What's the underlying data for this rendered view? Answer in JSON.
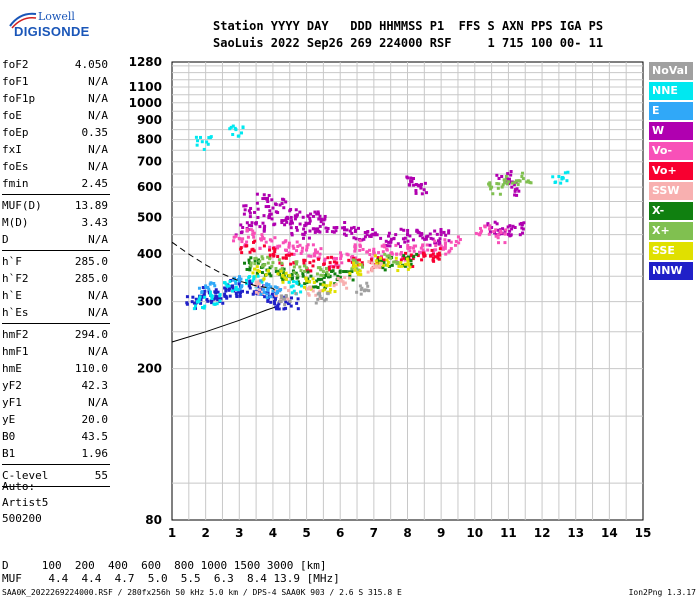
{
  "logo": {
    "line1": "Lowell",
    "line2": "DIGISONDE"
  },
  "header": {
    "labels": "Station YYYY DAY   DDD HHMMSS P1  FFS S AXN PPS IGA PS",
    "values": "SaoLuis 2022 Sep26 269 224000 RSF     1 715 100 00- 11"
  },
  "params": [
    {
      "name": "foF2",
      "value": "4.050"
    },
    {
      "name": "foF1",
      "value": "N/A"
    },
    {
      "name": "foF1p",
      "value": "N/A"
    },
    {
      "name": "foE",
      "value": "N/A"
    },
    {
      "name": "foEp",
      "value": "0.35"
    },
    {
      "name": "fxI",
      "value": "N/A"
    },
    {
      "name": "foEs",
      "value": "N/A"
    },
    {
      "name": "fmin",
      "value": "2.45",
      "sep_after": true
    },
    {
      "name": "MUF(D)",
      "value": "13.89"
    },
    {
      "name": "M(D)",
      "value": "3.43"
    },
    {
      "name": "D",
      "value": "N/A",
      "sep_after": true
    },
    {
      "name": "h`F",
      "value": "285.0"
    },
    {
      "name": "h`F2",
      "value": "285.0"
    },
    {
      "name": "h`E",
      "value": "N/A"
    },
    {
      "name": "h`Es",
      "value": "N/A",
      "sep_after": true
    },
    {
      "name": "hmF2",
      "value": "294.0"
    },
    {
      "name": "hmF1",
      "value": "N/A"
    },
    {
      "name": "hmE",
      "value": "110.0"
    },
    {
      "name": "yF2",
      "value": "42.3"
    },
    {
      "name": "yF1",
      "value": "N/A"
    },
    {
      "name": "yE",
      "value": "20.0"
    },
    {
      "name": "B0",
      "value": "43.5"
    },
    {
      "name": "B1",
      "value": "1.96",
      "sep_after": true
    },
    {
      "name": "C-level",
      "value": "55",
      "sep_after": true
    }
  ],
  "auto": [
    "Auto:",
    "Artist5",
    "500200"
  ],
  "legend": [
    {
      "label": "NoVal",
      "color": "#a0a0a0"
    },
    {
      "label": "NNE",
      "color": "#00e8f0"
    },
    {
      "label": "E",
      "color": "#30a8f8"
    },
    {
      "label": "W",
      "color": "#b000b0"
    },
    {
      "label": "Vo-",
      "color": "#f850b8"
    },
    {
      "label": "Vo+",
      "color": "#f80030"
    },
    {
      "label": "SSW",
      "color": "#f8b0b0"
    },
    {
      "label": "X-",
      "color": "#108010"
    },
    {
      "label": "X+",
      "color": "#80c050"
    },
    {
      "label": "SSE",
      "color": "#e0e000"
    },
    {
      "label": "NNW",
      "color": "#2020c8"
    }
  ],
  "muf_table": {
    "d_line": "D     100  200  400  600  800 1000 1500 3000 [km]",
    "muf_line": "MUF    4.4  4.4  4.7  5.0  5.5  6.3  8.4 13.9 [MHz]"
  },
  "footer": "SAA0K_2022269224000.RSF / 280fx256h 50 kHz 5.0 km / DPS-4 SAA0K 903 / 2.6 S 315.8 E",
  "version": "Ion2Png 1.3.17",
  "chart_data": {
    "type": "scatter",
    "title": "",
    "xlabel": "",
    "ylabel": "",
    "xlim": [
      1,
      15
    ],
    "ylim": [
      80,
      1280
    ],
    "x_ticks": [
      1,
      2,
      3,
      4,
      5,
      6,
      7,
      8,
      9,
      10,
      11,
      12,
      13,
      14,
      15
    ],
    "y_ticks": [
      80,
      200,
      300,
      400,
      500,
      600,
      700,
      800,
      900,
      1000,
      1100,
      1280
    ],
    "y_scale": "log",
    "grid": true,
    "legend_position": "right",
    "series": [
      {
        "color": "#b000b0",
        "points": [
          [
            3.1,
            470
          ],
          [
            3.5,
            480
          ],
          [
            3.9,
            500
          ],
          [
            4.3,
            490
          ],
          [
            4.7,
            470
          ],
          [
            5.1,
            460
          ],
          [
            5.5,
            480
          ],
          [
            5.9,
            470
          ],
          [
            6.3,
            460
          ],
          [
            6.8,
            450
          ],
          [
            7.2,
            440
          ],
          [
            7.6,
            440
          ],
          [
            8.0,
            450
          ],
          [
            8.3,
            460
          ],
          [
            8.7,
            440
          ],
          [
            9.0,
            450
          ],
          [
            10.5,
            470
          ],
          [
            10.9,
            460
          ],
          [
            11.2,
            470
          ],
          [
            3.3,
            520
          ],
          [
            3.7,
            560
          ],
          [
            4.1,
            540
          ],
          [
            4.5,
            520
          ],
          [
            4.9,
            500
          ],
          [
            5.3,
            510
          ],
          [
            8.1,
            620
          ],
          [
            8.4,
            600
          ],
          [
            10.8,
            640
          ],
          [
            11.1,
            600
          ]
        ]
      },
      {
        "color": "#f850b8",
        "points": [
          [
            3.0,
            440
          ],
          [
            3.4,
            460
          ],
          [
            3.8,
            430
          ],
          [
            4.2,
            420
          ],
          [
            4.6,
            420
          ],
          [
            5.0,
            410
          ],
          [
            5.4,
            400
          ],
          [
            5.8,
            390
          ],
          [
            6.2,
            400
          ],
          [
            6.6,
            420
          ],
          [
            7.0,
            400
          ],
          [
            7.4,
            410
          ],
          [
            7.8,
            400
          ],
          [
            8.2,
            420
          ],
          [
            8.6,
            410
          ],
          [
            9.0,
            420
          ],
          [
            9.3,
            430
          ],
          [
            10.2,
            460
          ],
          [
            10.7,
            450
          ]
        ]
      },
      {
        "color": "#f80030",
        "points": [
          [
            3.2,
            420
          ],
          [
            3.9,
            410
          ],
          [
            4.4,
            390
          ],
          [
            5.1,
            380
          ],
          [
            5.7,
            380
          ],
          [
            6.4,
            390
          ],
          [
            7.1,
            380
          ],
          [
            7.9,
            390
          ],
          [
            8.5,
            400
          ],
          [
            8.9,
            400
          ]
        ]
      },
      {
        "color": "#108010",
        "points": [
          [
            3.3,
            380
          ],
          [
            3.7,
            370
          ],
          [
            4.1,
            360
          ],
          [
            4.5,
            350
          ],
          [
            4.9,
            350
          ],
          [
            5.3,
            340
          ],
          [
            5.7,
            350
          ],
          [
            6.1,
            360
          ],
          [
            7.3,
            380
          ],
          [
            8.0,
            390
          ]
        ]
      },
      {
        "color": "#80c050",
        "points": [
          [
            3.5,
            390
          ],
          [
            4.0,
            380
          ],
          [
            4.8,
            370
          ],
          [
            5.5,
            360
          ],
          [
            6.5,
            380
          ],
          [
            7.5,
            390
          ],
          [
            10.5,
            600
          ],
          [
            11.0,
            620
          ],
          [
            11.4,
            640
          ]
        ]
      },
      {
        "color": "#e0e000",
        "points": [
          [
            3.6,
            360
          ],
          [
            4.3,
            350
          ],
          [
            5.0,
            340
          ],
          [
            5.6,
            330
          ],
          [
            6.4,
            370
          ],
          [
            7.2,
            390
          ],
          [
            7.8,
            380
          ]
        ]
      },
      {
        "color": "#2020c8",
        "points": [
          [
            1.6,
            300
          ],
          [
            1.9,
            310
          ],
          [
            2.1,
            320
          ],
          [
            2.3,
            310
          ],
          [
            2.6,
            320
          ],
          [
            2.8,
            330
          ],
          [
            3.0,
            320
          ],
          [
            3.3,
            330
          ],
          [
            3.6,
            320
          ],
          [
            3.9,
            310
          ],
          [
            4.2,
            300
          ],
          [
            4.5,
            300
          ]
        ]
      },
      {
        "color": "#00e8f0",
        "points": [
          [
            1.8,
            300
          ],
          [
            2.2,
            310
          ],
          [
            2.7,
            330
          ],
          [
            3.4,
            340
          ],
          [
            4.6,
            330
          ],
          [
            1.9,
            790
          ],
          [
            2.9,
            850
          ],
          [
            12.5,
            640
          ]
        ]
      },
      {
        "color": "#f8b0b0",
        "points": [
          [
            3.5,
            330
          ],
          [
            4.2,
            320
          ],
          [
            5.2,
            320
          ],
          [
            6.0,
            340
          ],
          [
            7.0,
            370
          ]
        ]
      },
      {
        "color": "#30a8f8",
        "points": [
          [
            2.0,
            330
          ],
          [
            3.0,
            340
          ],
          [
            3.8,
            330
          ],
          [
            4.0,
            320
          ]
        ]
      },
      {
        "color": "#a0a0a0",
        "points": [
          [
            4.4,
            310
          ],
          [
            5.4,
            310
          ],
          [
            6.6,
            330
          ]
        ]
      }
    ],
    "model_lines": [
      {
        "style": "solid",
        "points": [
          [
            1,
            235
          ],
          [
            2,
            250
          ],
          [
            3,
            268
          ],
          [
            3.8,
            285
          ],
          [
            4.05,
            290
          ]
        ]
      },
      {
        "style": "dashed",
        "points": [
          [
            1,
            430
          ],
          [
            1.5,
            400
          ],
          [
            2,
            375
          ],
          [
            2.5,
            355
          ],
          [
            3,
            340
          ],
          [
            3.5,
            330
          ],
          [
            4,
            325
          ],
          [
            4.05,
            322
          ]
        ]
      }
    ]
  }
}
